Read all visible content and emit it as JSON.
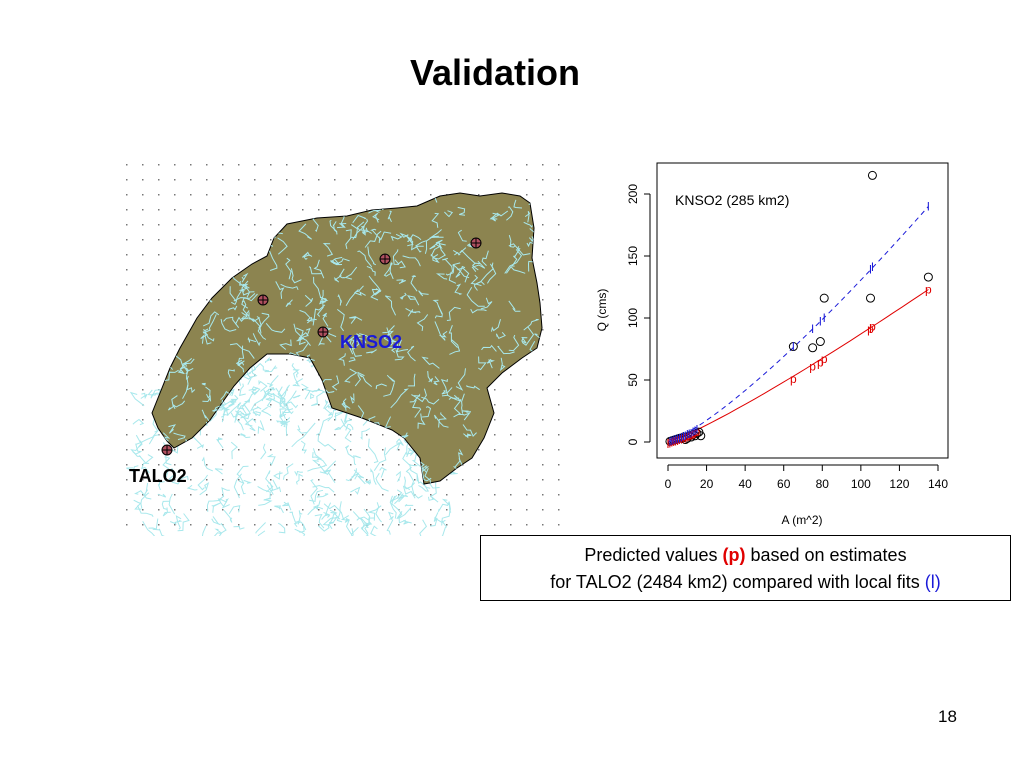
{
  "slide": {
    "title": "Validation",
    "page_number": "18"
  },
  "map": {
    "knso2_label": "KNSO2",
    "talo2_label": "TALO2",
    "colors": {
      "basin_fill": "#8c8450",
      "streams": "#a8e8ec",
      "station_fill": "#b05060",
      "knso2_label": "#1a1ad8"
    }
  },
  "caption": {
    "line1_before": "Predicted values ",
    "p_marker": "(p)",
    "line1_after": " based on estimates",
    "line2_before": "for TALO2 (2484 km2) compared with local fits ",
    "l_marker": "(l)"
  },
  "chart_data": {
    "type": "scatter",
    "title": "KNSO2 (285 km2)",
    "xlabel": "A (m^2)",
    "ylabel": "Q (cms)",
    "xlim": [
      0,
      140
    ],
    "ylim": [
      0,
      215
    ],
    "xticks": [
      0,
      20,
      40,
      60,
      80,
      100,
      120,
      140
    ],
    "yticks": [
      0,
      50,
      100,
      150,
      200
    ],
    "grid": false,
    "colors": {
      "observed": "#000000",
      "p": "#e00000",
      "l": "#1a1ad8"
    },
    "series": [
      {
        "marker": "o",
        "points": [
          [
            1,
            0.5
          ],
          [
            2,
            1
          ],
          [
            3,
            1.5
          ],
          [
            4,
            2
          ],
          [
            5,
            2.5
          ],
          [
            6,
            3
          ],
          [
            7,
            3
          ],
          [
            8,
            4
          ],
          [
            9,
            2
          ],
          [
            10,
            3
          ],
          [
            11,
            5
          ],
          [
            12,
            4
          ],
          [
            13,
            6
          ],
          [
            14,
            5
          ],
          [
            15,
            7
          ],
          [
            16,
            8
          ],
          [
            17,
            5
          ],
          [
            65,
            77
          ],
          [
            75,
            76
          ],
          [
            79,
            81
          ],
          [
            81,
            116
          ],
          [
            105,
            116
          ],
          [
            106,
            215
          ],
          [
            135,
            133
          ]
        ]
      },
      {
        "marker": "p",
        "points": [
          [
            1,
            0.5
          ],
          [
            2,
            1
          ],
          [
            3,
            1.5
          ],
          [
            4,
            2
          ],
          [
            5,
            2.5
          ],
          [
            6,
            3
          ],
          [
            7,
            3.5
          ],
          [
            8,
            4
          ],
          [
            9,
            4.5
          ],
          [
            10,
            5
          ],
          [
            11,
            5.5
          ],
          [
            12,
            6
          ],
          [
            13,
            7
          ],
          [
            14,
            7.5
          ],
          [
            15,
            8
          ],
          [
            65,
            51
          ],
          [
            75,
            61
          ],
          [
            79,
            64
          ],
          [
            81,
            67
          ],
          [
            105,
            91
          ],
          [
            106,
            93
          ],
          [
            135,
            123
          ]
        ]
      },
      {
        "marker": "l",
        "points": [
          [
            1,
            0.5
          ],
          [
            2,
            1
          ],
          [
            3,
            1.5
          ],
          [
            4,
            2
          ],
          [
            5,
            2.5
          ],
          [
            6,
            3
          ],
          [
            7,
            3.5
          ],
          [
            8,
            4.5
          ],
          [
            9,
            5
          ],
          [
            10,
            6
          ],
          [
            11,
            6.5
          ],
          [
            12,
            7
          ],
          [
            13,
            8
          ],
          [
            14,
            9
          ],
          [
            15,
            10
          ],
          [
            65,
            77
          ],
          [
            75,
            91
          ],
          [
            79,
            97
          ],
          [
            81,
            100
          ],
          [
            105,
            139
          ],
          [
            106,
            141
          ],
          [
            135,
            190
          ]
        ]
      }
    ],
    "fit_lines": [
      {
        "marker": "p",
        "style": "solid",
        "x": [
          0,
          135
        ],
        "y": [
          0,
          123
        ]
      },
      {
        "marker": "l",
        "style": "dashed",
        "x": [
          0,
          135
        ],
        "y": [
          0,
          190
        ]
      }
    ]
  }
}
